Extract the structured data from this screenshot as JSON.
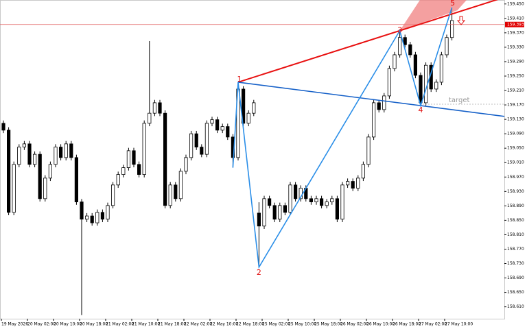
{
  "chart_data": {
    "type": "candlestick",
    "categories": [
      "19 May 2026",
      null,
      null,
      null,
      null,
      "20 May 02:00",
      null,
      null,
      null,
      null,
      "20 May 10:00",
      null,
      null,
      null,
      null,
      "20 May 18:00",
      null,
      null,
      null,
      null,
      "21 May 02:00",
      null,
      null,
      null,
      null,
      "21 May 10:00",
      null,
      null,
      null,
      null,
      "21 May 18:00",
      null,
      null,
      null,
      null,
      "22 May 02:00",
      null,
      null,
      null,
      null,
      "22 May 10:00",
      null,
      null,
      null,
      null,
      "22 May 18:00",
      null,
      null,
      null,
      null,
      "25 May 02:00",
      null,
      null,
      null,
      null,
      "25 May 10:00",
      null,
      null,
      null,
      null,
      "25 May 18:00",
      null,
      null,
      null,
      null,
      "26 May 02:00",
      null,
      null,
      null,
      null,
      "26 May 10:00",
      null,
      null,
      null,
      null,
      "26 May 18:00",
      null,
      null,
      null,
      null,
      "27 May 02:00",
      null,
      null,
      null,
      null,
      "27 May 10:00",
      null
    ],
    "open": [
      159.119,
      159.1,
      158.872,
      159.005,
      159.053,
      159.062,
      159.005,
      159.033,
      158.91,
      158.967,
      159.005,
      159.053,
      159.024,
      159.062,
      159.024,
      158.901,
      158.853,
      158.862,
      158.843,
      158.872,
      158.853,
      158.891,
      158.948,
      158.977,
      158.996,
      159.043,
      159.005,
      158.977,
      159.119,
      159.147,
      159.176,
      159.147,
      158.891,
      158.948,
      158.91,
      158.986,
      159.024,
      159.09,
      159.053,
      159.033,
      159.119,
      159.129,
      159.1,
      159.11,
      159.081,
      159.024,
      159.214,
      159.119,
      159.147,
      158.87,
      158.834,
      158.91,
      158.891,
      158.853,
      158.891,
      158.872,
      158.948,
      158.91,
      158.939,
      158.91,
      158.901,
      158.91,
      158.891,
      158.901,
      158.91,
      158.853,
      158.948,
      158.958,
      158.939,
      158.967,
      159.005,
      159.081,
      159.176,
      159.157,
      159.195,
      159.271,
      159.309,
      159.357,
      159.337,
      159.309,
      159.252,
      159.176,
      159.28,
      159.214,
      159.233,
      159.309,
      159.357
    ],
    "high": [
      159.127,
      159.108,
      159.013,
      159.061,
      159.07,
      159.07,
      159.041,
      159.041,
      158.975,
      159.013,
      159.061,
      159.061,
      159.07,
      159.07,
      159.032,
      158.909,
      158.87,
      158.87,
      158.88,
      158.88,
      158.899,
      158.956,
      158.985,
      159.004,
      159.051,
      159.051,
      159.013,
      159.127,
      159.347,
      159.184,
      159.184,
      159.155,
      158.956,
      158.956,
      158.994,
      159.032,
      159.098,
      159.098,
      159.061,
      159.127,
      159.137,
      159.137,
      159.118,
      159.118,
      159.089,
      159.233,
      159.222,
      159.155,
      159.184,
      158.9,
      158.918,
      158.918,
      158.899,
      158.899,
      158.899,
      158.956,
      158.956,
      158.947,
      158.947,
      158.918,
      158.918,
      158.918,
      158.909,
      158.918,
      158.918,
      158.956,
      158.966,
      158.966,
      158.975,
      159.013,
      159.089,
      159.184,
      159.184,
      159.203,
      159.279,
      159.317,
      159.376,
      159.365,
      159.345,
      159.317,
      159.26,
      159.288,
      159.288,
      159.241,
      159.317,
      159.365,
      159.44
    ],
    "low": [
      159.092,
      158.864,
      158.864,
      158.997,
      159.045,
      158.997,
      158.997,
      158.902,
      158.902,
      158.959,
      158.997,
      159.016,
      159.016,
      159.016,
      158.893,
      158.587,
      158.845,
      158.835,
      158.835,
      158.845,
      158.845,
      158.883,
      158.94,
      158.969,
      158.988,
      158.997,
      158.969,
      158.969,
      159.111,
      159.139,
      159.139,
      158.883,
      158.883,
      158.902,
      158.902,
      158.978,
      159.016,
      159.045,
      159.025,
      159.025,
      159.111,
      159.092,
      159.092,
      159.073,
      158.996,
      159.016,
      159.111,
      159.111,
      159.139,
      158.72,
      158.826,
      158.883,
      158.845,
      158.845,
      158.864,
      158.864,
      158.902,
      158.902,
      158.902,
      158.893,
      158.893,
      158.883,
      158.883,
      158.893,
      158.845,
      158.845,
      158.94,
      158.931,
      158.931,
      158.959,
      158.997,
      159.073,
      159.149,
      159.149,
      159.187,
      159.263,
      159.301,
      159.329,
      159.301,
      159.244,
      159.168,
      159.168,
      159.206,
      159.206,
      159.225,
      159.301,
      159.349
    ],
    "close": [
      159.1,
      158.872,
      159.005,
      159.053,
      159.062,
      159.005,
      159.033,
      158.91,
      158.967,
      159.005,
      159.053,
      159.024,
      159.062,
      159.024,
      158.901,
      158.853,
      158.862,
      158.843,
      158.872,
      158.853,
      158.891,
      158.948,
      158.977,
      158.996,
      159.043,
      159.005,
      158.977,
      159.119,
      159.147,
      159.176,
      159.147,
      158.891,
      158.948,
      158.91,
      158.986,
      159.024,
      159.09,
      159.053,
      159.033,
      159.119,
      159.129,
      159.1,
      159.11,
      159.081,
      159.024,
      159.214,
      159.119,
      159.147,
      159.176,
      158.834,
      158.91,
      158.891,
      158.853,
      158.891,
      158.872,
      158.948,
      158.91,
      158.939,
      158.91,
      158.901,
      158.91,
      158.891,
      158.901,
      158.91,
      158.853,
      158.948,
      158.958,
      158.939,
      158.967,
      159.005,
      159.081,
      159.176,
      159.157,
      159.195,
      159.271,
      159.309,
      159.357,
      159.337,
      159.309,
      159.252,
      159.176,
      159.28,
      159.214,
      159.233,
      159.309,
      159.357,
      159.404
    ],
    "up_color": "#ffffff",
    "down_color": "#000000",
    "ylim": [
      158.577,
      159.461
    ],
    "yticks": [
      {
        "value": 159.45,
        "label": "159.450"
      },
      {
        "value": 159.41,
        "label": "159.410"
      },
      {
        "value": 159.37,
        "label": "159.370"
      },
      {
        "value": 159.33,
        "label": "159.330"
      },
      {
        "value": 159.29,
        "label": "159.290"
      },
      {
        "value": 159.25,
        "label": "159.250"
      },
      {
        "value": 159.21,
        "label": "159.210"
      },
      {
        "value": 159.17,
        "label": "159.170"
      },
      {
        "value": 159.13,
        "label": "159.130"
      },
      {
        "value": 159.09,
        "label": "159.090"
      },
      {
        "value": 159.05,
        "label": "159.050"
      },
      {
        "value": 159.01,
        "label": "159.010"
      },
      {
        "value": 158.97,
        "label": "158.970"
      },
      {
        "value": 158.93,
        "label": "158.930"
      },
      {
        "value": 158.89,
        "label": "158.890"
      },
      {
        "value": 158.85,
        "label": "158.850"
      },
      {
        "value": 158.81,
        "label": "158.810"
      },
      {
        "value": 158.77,
        "label": "158.770"
      },
      {
        "value": 158.73,
        "label": "158.730"
      },
      {
        "value": 158.69,
        "label": "158.690"
      },
      {
        "value": 158.65,
        "label": "158.650"
      },
      {
        "value": 158.61,
        "label": "158.610"
      }
    ],
    "current_price": 159.393,
    "pattern": {
      "color": "#2a8ee8",
      "points": [
        {
          "index": 44,
          "price": 158.996
        },
        {
          "index": 45,
          "price": 159.233,
          "label": "1"
        },
        {
          "index": 49,
          "price": 158.72,
          "label": "2"
        },
        {
          "index": 76,
          "price": 159.376,
          "label": "3"
        },
        {
          "index": 80,
          "price": 159.168,
          "label": "4"
        },
        {
          "index": 86,
          "price": 159.44,
          "label": "5"
        }
      ]
    },
    "target": {
      "label": "target",
      "price": 159.172
    }
  }
}
